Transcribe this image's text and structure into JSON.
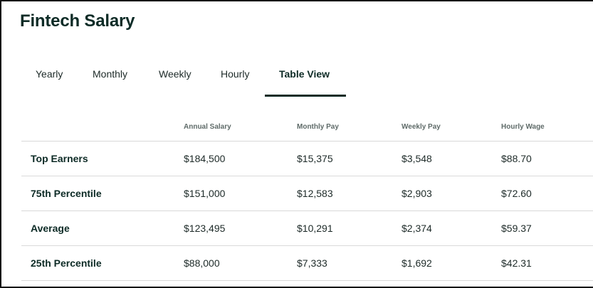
{
  "page": {
    "title": "Fintech Salary"
  },
  "tabs": [
    {
      "label": "Yearly"
    },
    {
      "label": "Monthly"
    },
    {
      "label": "Weekly"
    },
    {
      "label": "Hourly"
    },
    {
      "label": "Table View"
    }
  ],
  "active_tab": "Table View",
  "table": {
    "headers": [
      "Annual Salary",
      "Monthly Pay",
      "Weekly Pay",
      "Hourly Wage"
    ],
    "rows": [
      {
        "label": "Top Earners",
        "values": [
          "$184,500",
          "$15,375",
          "$3,548",
          "$88.70"
        ]
      },
      {
        "label": "75th Percentile",
        "values": [
          "$151,000",
          "$12,583",
          "$2,903",
          "$72.60"
        ]
      },
      {
        "label": "Average",
        "values": [
          "$123,495",
          "$10,291",
          "$2,374",
          "$59.37"
        ]
      },
      {
        "label": "25th Percentile",
        "values": [
          "$88,000",
          "$7,333",
          "$1,692",
          "$42.31"
        ]
      }
    ]
  },
  "colors": {
    "text_dark": "#0d2b26",
    "divider": "#d9d9d9",
    "header_text": "#5f6b69"
  }
}
